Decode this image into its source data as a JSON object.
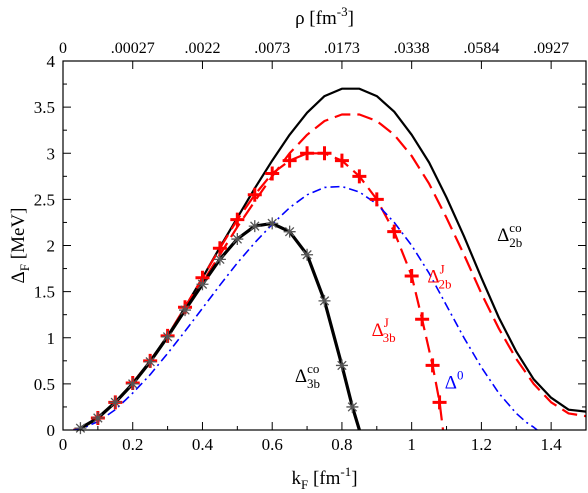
{
  "chart_data": {
    "type": "line",
    "xlabel": {
      "main": "k",
      "sub": "F",
      "unit": " [fm",
      "sup": "-1",
      "close": "]"
    },
    "ylabel": {
      "main": "Δ",
      "sub": "F",
      "unit": " [MeV]"
    },
    "x2label": {
      "main": "ρ [fm",
      "sup": "-3",
      "close": "]"
    },
    "xlim": [
      0,
      1.5
    ],
    "ylim": [
      0,
      4
    ],
    "x_ticks": [
      0,
      0.2,
      0.4,
      0.6,
      0.8,
      1.0,
      1.2,
      1.4
    ],
    "x_tick_labels": [
      "0",
      "0.2",
      "0.4",
      "0.6",
      "0.8",
      "1",
      "1.2",
      "1.4"
    ],
    "y_ticks": [
      0,
      0.5,
      1,
      1.5,
      2,
      2.5,
      3,
      3.5,
      4
    ],
    "y_tick_labels": [
      "0",
      "0.5",
      "1",
      "1.5",
      "2",
      "2.5",
      "3",
      "3.5",
      "4"
    ],
    "top_ticks_kF": [
      0,
      0.2,
      0.4,
      0.6,
      0.8,
      1.0,
      1.2,
      1.4
    ],
    "top_tick_labels": [
      "0",
      ".00027",
      ".0022",
      ".0073",
      ".0173",
      ".0338",
      ".0584",
      ".0927"
    ],
    "series": [
      {
        "key": "d2b_co",
        "color": "#000000",
        "dash": "solid",
        "width": 2.2,
        "marker": "none",
        "x": [
          0.03,
          0.05,
          0.1,
          0.15,
          0.2,
          0.25,
          0.3,
          0.35,
          0.4,
          0.45,
          0.5,
          0.55,
          0.6,
          0.65,
          0.7,
          0.75,
          0.8,
          0.85,
          0.9,
          0.95,
          1.0,
          1.05,
          1.1,
          1.15,
          1.2,
          1.25,
          1.3,
          1.35,
          1.4,
          1.45,
          1.5
        ],
        "y": [
          0.0,
          0.02,
          0.13,
          0.3,
          0.51,
          0.75,
          1.02,
          1.33,
          1.65,
          1.98,
          2.3,
          2.62,
          2.92,
          3.2,
          3.44,
          3.62,
          3.7,
          3.7,
          3.62,
          3.45,
          3.2,
          2.9,
          2.52,
          2.1,
          1.65,
          1.22,
          0.85,
          0.55,
          0.35,
          0.22,
          0.2
        ]
      },
      {
        "key": "d2b_j",
        "color": "#ff0000",
        "dash": "dashed",
        "width": 2.2,
        "marker": "none",
        "x": [
          0.03,
          0.05,
          0.1,
          0.15,
          0.2,
          0.25,
          0.3,
          0.35,
          0.4,
          0.45,
          0.5,
          0.55,
          0.6,
          0.65,
          0.7,
          0.75,
          0.8,
          0.85,
          0.9,
          0.95,
          1.0,
          1.05,
          1.1,
          1.15,
          1.2,
          1.25,
          1.3,
          1.35,
          1.4,
          1.45,
          1.5
        ],
        "y": [
          0.0,
          0.02,
          0.13,
          0.29,
          0.5,
          0.74,
          1.01,
          1.3,
          1.6,
          1.9,
          2.2,
          2.48,
          2.75,
          3.0,
          3.2,
          3.35,
          3.42,
          3.42,
          3.35,
          3.2,
          2.97,
          2.67,
          2.3,
          1.9,
          1.48,
          1.1,
          0.77,
          0.5,
          0.3,
          0.18,
          0.15
        ]
      },
      {
        "key": "d3b_j",
        "color": "#ff0000",
        "dash": "dashed",
        "width": 2.2,
        "marker": "plus",
        "x": [
          0.05,
          0.1,
          0.15,
          0.2,
          0.25,
          0.3,
          0.35,
          0.4,
          0.45,
          0.5,
          0.55,
          0.6,
          0.65,
          0.7,
          0.75,
          0.8,
          0.85,
          0.9,
          0.95,
          1.0,
          1.03,
          1.06,
          1.08,
          1.09
        ],
        "y": [
          0.02,
          0.13,
          0.3,
          0.51,
          0.75,
          1.02,
          1.33,
          1.65,
          1.97,
          2.28,
          2.55,
          2.78,
          2.92,
          3.0,
          3.0,
          2.92,
          2.75,
          2.5,
          2.15,
          1.67,
          1.2,
          0.7,
          0.3,
          0.0
        ]
      },
      {
        "key": "d0",
        "color": "#0000ff",
        "dash": "dashdot",
        "width": 1.6,
        "marker": "none",
        "x": [
          0.03,
          0.05,
          0.1,
          0.15,
          0.2,
          0.25,
          0.3,
          0.35,
          0.4,
          0.45,
          0.5,
          0.55,
          0.6,
          0.65,
          0.7,
          0.75,
          0.8,
          0.85,
          0.9,
          0.95,
          1.0,
          1.05,
          1.1,
          1.15,
          1.2,
          1.25,
          1.3,
          1.33,
          1.35,
          1.36
        ],
        "y": [
          0.0,
          0.01,
          0.09,
          0.22,
          0.4,
          0.6,
          0.83,
          1.07,
          1.32,
          1.57,
          1.81,
          2.03,
          2.23,
          2.41,
          2.55,
          2.63,
          2.64,
          2.58,
          2.45,
          2.25,
          2.0,
          1.7,
          1.35,
          1.0,
          0.68,
          0.4,
          0.18,
          0.08,
          0.03,
          0.0
        ]
      },
      {
        "key": "d3b_co",
        "color": "#000000",
        "dash": "solid",
        "width": 3.2,
        "marker": "star",
        "x": [
          0.05,
          0.1,
          0.15,
          0.2,
          0.25,
          0.3,
          0.35,
          0.4,
          0.45,
          0.5,
          0.55,
          0.6,
          0.65,
          0.7,
          0.75,
          0.8,
          0.83,
          0.85
        ],
        "y": [
          0.02,
          0.13,
          0.3,
          0.5,
          0.74,
          1.01,
          1.3,
          1.58,
          1.85,
          2.07,
          2.21,
          2.24,
          2.15,
          1.9,
          1.4,
          0.7,
          0.25,
          0.0
        ]
      }
    ],
    "labels": [
      {
        "key": "d2b_co_label",
        "main": "Δ",
        "sup": "co",
        "sub": "2b",
        "color": "#000000",
        "x": 1.245,
        "y": 2.05
      },
      {
        "key": "d2b_j_label",
        "main": "Δ",
        "sup": "J",
        "sub": "2b",
        "color": "#ff0000",
        "x": 1.045,
        "y": 1.6
      },
      {
        "key": "d3b_j_label",
        "main": "Δ",
        "sup": "J",
        "sub": "3b",
        "color": "#ff0000",
        "x": 0.885,
        "y": 1.02
      },
      {
        "key": "d0_label",
        "main": "Δ",
        "sup": "0",
        "sub": "",
        "color": "#0000ff",
        "x": 1.095,
        "y": 0.45
      },
      {
        "key": "d3b_co_label",
        "main": "Δ",
        "sup": "co",
        "sub": "3b",
        "color": "#000000",
        "x": 0.665,
        "y": 0.52
      }
    ]
  }
}
